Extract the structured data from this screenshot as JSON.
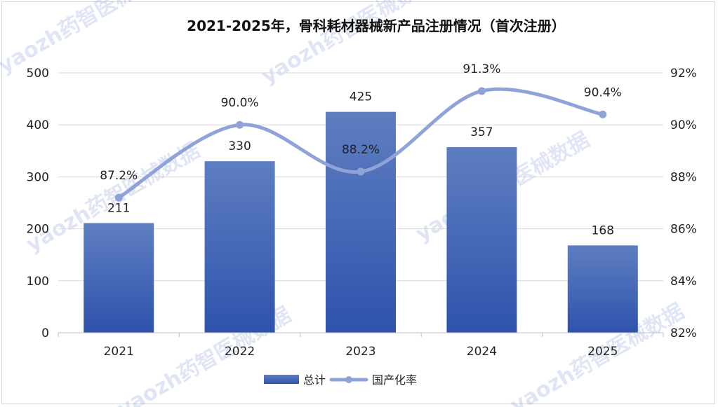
{
  "chart_data": {
    "type": "bar+line",
    "title": "2021-2025年，骨科耗材器械新产品注册情况（首次注册）",
    "categories": [
      "2021",
      "2022",
      "2023",
      "2024",
      "2025"
    ],
    "series": [
      {
        "name": "总计",
        "type": "bar",
        "axis": "left",
        "values": [
          211,
          330,
          425,
          357,
          168
        ],
        "labels": [
          "211",
          "330",
          "425",
          "357",
          "168"
        ]
      },
      {
        "name": "国产化率",
        "type": "line",
        "axis": "right",
        "values": [
          87.2,
          90.0,
          88.2,
          91.3,
          90.4
        ],
        "labels": [
          "87.2%",
          "90.0%",
          "88.2%",
          "91.3%",
          "90.4%"
        ]
      }
    ],
    "y_left": {
      "min": 0,
      "max": 500,
      "ticks": [
        0,
        100,
        200,
        300,
        400,
        500
      ],
      "tick_labels": [
        "0",
        "100",
        "200",
        "300",
        "400",
        "500"
      ]
    },
    "y_right": {
      "min": 82,
      "max": 92,
      "ticks": [
        82,
        84,
        86,
        88,
        90,
        92
      ],
      "tick_labels": [
        "82%",
        "84%",
        "86%",
        "88%",
        "90%",
        "92%"
      ]
    },
    "grid": true,
    "legend_position": "bottom",
    "colors": {
      "bar_top": "#5e7ec1",
      "bar_bottom": "#2f53ac",
      "line": "#8fa3d8",
      "grid": "#d9d9d9"
    }
  },
  "watermark": "yaozh药智医械数据"
}
